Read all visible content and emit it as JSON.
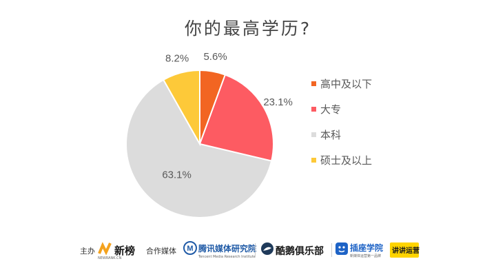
{
  "chart_data": {
    "type": "pie",
    "title": "你的最高学历?",
    "categories": [
      "高中及以下",
      "大专",
      "本科",
      "硕士及以上"
    ],
    "values": [
      5.6,
      23.1,
      63.1,
      8.2
    ],
    "value_labels": [
      "5.6%",
      "23.1%",
      "63.1%",
      "8.2%"
    ],
    "colors": [
      "#f26522",
      "#fd5b62",
      "#dcdcdc",
      "#fdc939"
    ],
    "legend_position": "right",
    "start_angle": "12 o'clock, clockwise"
  },
  "footer": {
    "host_label": "主办",
    "host_logo": {
      "name": "新榜",
      "sub": "NEWRANK.CN"
    },
    "partner_label": "合作媒体",
    "partners": [
      {
        "name": "腾讯媒体研究院",
        "sub": "Tencent Media Research Institute"
      },
      {
        "name": "酷鹅俱乐部"
      },
      {
        "name": "插座学院",
        "sub": "新媒体运营第一品牌"
      },
      {
        "name": "讲讲运营"
      }
    ],
    "colors": {
      "newrank_orange": "#f4a21e",
      "tencent_blue": "#1f5aa6",
      "cooler_dark": "#1f3a5a",
      "chazuo_blue": "#1e63c6",
      "jiang_yellow": "#ffd400"
    }
  }
}
